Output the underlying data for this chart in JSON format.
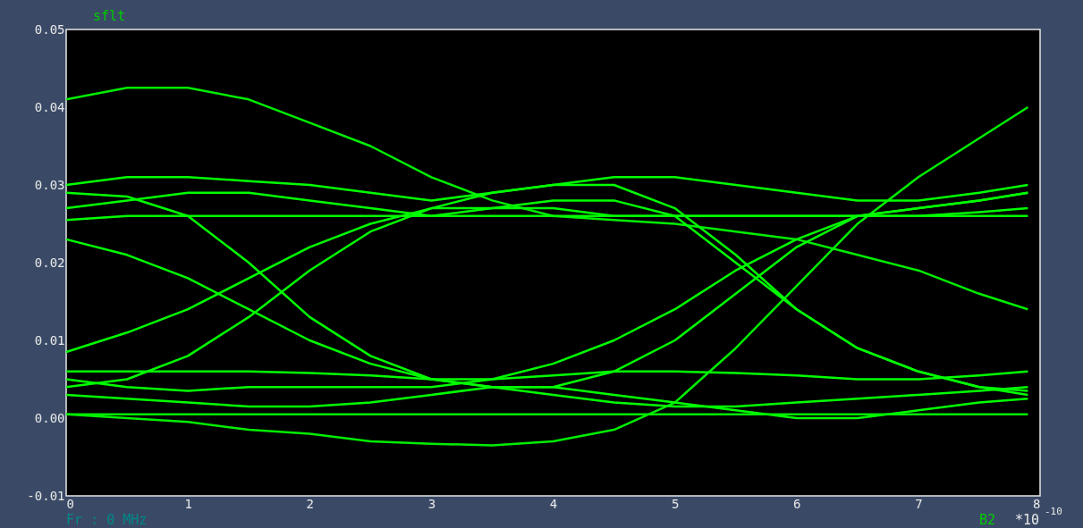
{
  "chart_data": {
    "type": "line",
    "title": "sflt",
    "xlabel": "*10$^{-10}$",
    "annotations": [
      "Fr : 0 MHz",
      "B2"
    ],
    "xlim": [
      0,
      8
    ],
    "xticks": [
      0,
      1,
      2,
      3,
      4,
      5,
      6,
      7,
      8
    ],
    "ylim": [
      -0.01,
      0.05
    ],
    "yticks": [
      {
        "value": -0.01,
        "label": "-0.01"
      },
      {
        "value": 0,
        "label": "0.00"
      },
      {
        "value": 0.01,
        "label": "0.01"
      },
      {
        "value": 0.02,
        "label": "0.02"
      },
      {
        "value": 0.03,
        "label": "0.03"
      },
      {
        "value": 0.04,
        "label": "0.04"
      },
      {
        "value": 0.05,
        "label": "0.05"
      }
    ],
    "grid": false,
    "marker": "none",
    "line_style": "solid",
    "x": [
      0,
      0.5,
      1,
      1.5,
      2,
      2.5,
      3,
      3.5,
      4,
      4.5,
      5,
      5.5,
      6,
      6.5,
      7,
      7.5,
      7.9
    ],
    "series": [
      {
        "color": "#00ee00",
        "values": [
          0.041,
          0.0425,
          0.0425,
          0.041,
          0.038,
          0.035,
          0.031,
          0.028,
          0.026,
          0.0255,
          0.025,
          0.024,
          0.023,
          0.021,
          0.019,
          0.016,
          0.014
        ]
      },
      {
        "color": "#00ee00",
        "values": [
          0.0005,
          0.0,
          -0.0005,
          -0.0015,
          -0.002,
          -0.003,
          -0.0033,
          -0.0035,
          -0.003,
          -0.0015,
          0.002,
          0.009,
          0.017,
          0.025,
          0.031,
          0.036,
          0.04
        ]
      },
      {
        "color": "#00ff00",
        "values": [
          0.03,
          0.031,
          0.031,
          0.0305,
          0.03,
          0.029,
          0.028,
          0.029,
          0.03,
          0.031,
          0.031,
          0.03,
          0.029,
          0.028,
          0.028,
          0.029,
          0.03
        ]
      },
      {
        "color": "#00ff00",
        "values": [
          0.0255,
          0.026,
          0.026,
          0.026,
          0.026,
          0.026,
          0.026,
          0.026,
          0.026,
          0.026,
          0.026,
          0.026,
          0.026,
          0.026,
          0.026,
          0.026,
          0.026
        ]
      },
      {
        "color": "#00ff00",
        "values": [
          0.029,
          0.0285,
          0.026,
          0.02,
          0.013,
          0.008,
          0.005,
          0.004,
          0.004,
          0.006,
          0.01,
          0.016,
          0.022,
          0.026,
          0.027,
          0.028,
          0.029
        ]
      },
      {
        "color": "#00ff00",
        "values": [
          0.004,
          0.005,
          0.008,
          0.013,
          0.019,
          0.024,
          0.027,
          0.029,
          0.03,
          0.03,
          0.027,
          0.021,
          0.014,
          0.009,
          0.006,
          0.004,
          0.003
        ]
      },
      {
        "color": "#00ff00",
        "values": [
          0.003,
          0.0025,
          0.002,
          0.0015,
          0.0015,
          0.002,
          0.003,
          0.004,
          0.004,
          0.003,
          0.002,
          0.001,
          0.0,
          0.0,
          0.001,
          0.002,
          0.0025
        ]
      },
      {
        "color": "#00ff00",
        "values": [
          0.027,
          0.028,
          0.029,
          0.029,
          0.028,
          0.027,
          0.026,
          0.027,
          0.028,
          0.028,
          0.026,
          0.02,
          0.014,
          0.009,
          0.006,
          0.004,
          0.0035
        ]
      },
      {
        "color": "#00ff00",
        "values": [
          0.005,
          0.004,
          0.0035,
          0.004,
          0.004,
          0.004,
          0.004,
          0.005,
          0.007,
          0.01,
          0.014,
          0.019,
          0.023,
          0.026,
          0.027,
          0.028,
          0.029
        ]
      },
      {
        "color": "#00ff00",
        "values": [
          0.023,
          0.021,
          0.018,
          0.014,
          0.01,
          0.007,
          0.005,
          0.004,
          0.003,
          0.002,
          0.0015,
          0.0015,
          0.002,
          0.0025,
          0.003,
          0.0035,
          0.004
        ]
      },
      {
        "color": "#00ff00",
        "values": [
          0.0085,
          0.011,
          0.014,
          0.018,
          0.022,
          0.025,
          0.027,
          0.027,
          0.027,
          0.026,
          0.026,
          0.026,
          0.026,
          0.026,
          0.026,
          0.0265,
          0.027
        ]
      },
      {
        "color": "#00ff00",
        "values": [
          0.006,
          0.006,
          0.006,
          0.006,
          0.0058,
          0.0055,
          0.005,
          0.005,
          0.0055,
          0.006,
          0.006,
          0.0058,
          0.0055,
          0.005,
          0.005,
          0.0055,
          0.006
        ]
      },
      {
        "color": "#00ee00",
        "values": [
          0.0005,
          0.0005,
          0.0005,
          0.0005,
          0.0005,
          0.0005,
          0.0005,
          0.0005,
          0.0005,
          0.0005,
          0.0005,
          0.0005,
          0.0005,
          0.0005,
          0.0005,
          0.0005,
          0.0005
        ]
      }
    ]
  }
}
